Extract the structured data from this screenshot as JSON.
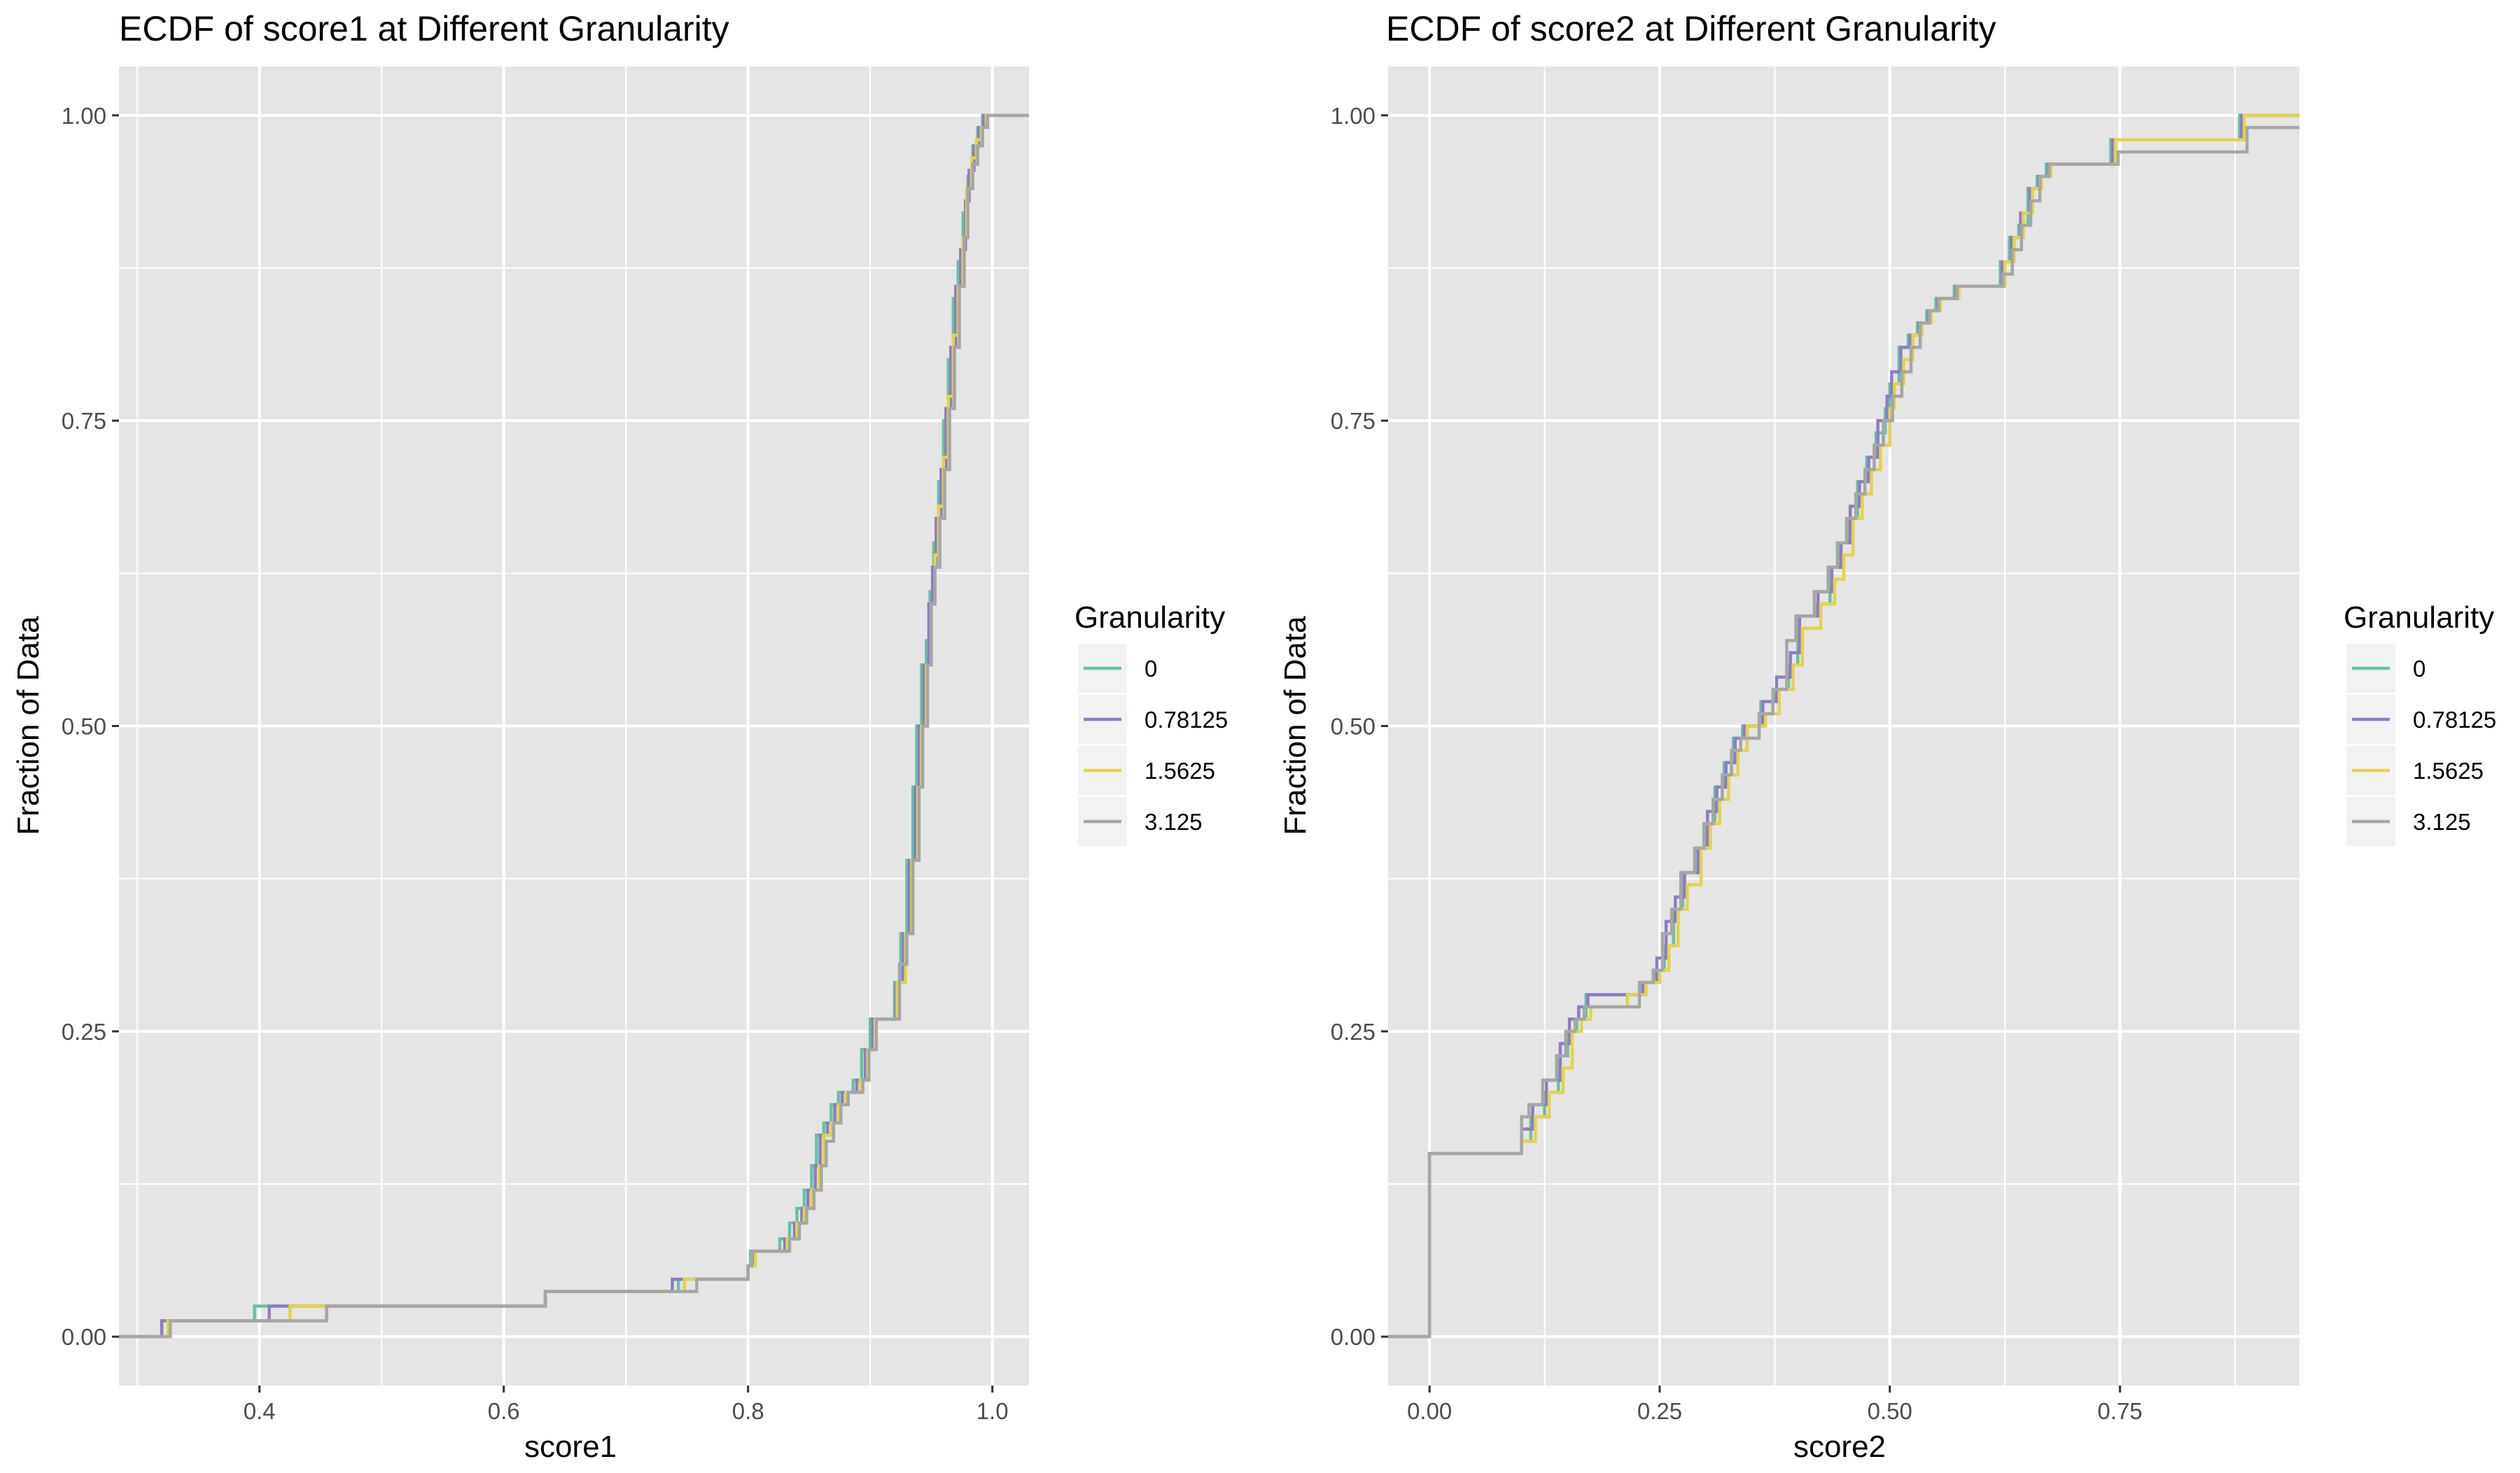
{
  "panels": [
    {
      "title": "ECDF of score1  at Different Granularity",
      "xlabel": "score1",
      "ylabel": "Fraction of Data",
      "legend_title": "Granularity"
    },
    {
      "title": "ECDF of score2  at Different Granularity",
      "xlabel": "score2",
      "ylabel": "Fraction of Data",
      "legend_title": "Granularity"
    }
  ],
  "colors": {
    "panel_bg": "#e5e5e5",
    "grid": "#ffffff",
    "legend_key_bg": "#f2f2f2",
    "text": "#000000",
    "tick_text": "#4d4d4d"
  },
  "chart_data": [
    {
      "type": "line",
      "step": true,
      "title": "ECDF of score1  at Different Granularity",
      "xlabel": "score1",
      "ylabel": "Fraction of Data",
      "xlim": [
        0.285,
        1.03
      ],
      "ylim": [
        -0.04,
        1.04
      ],
      "xticks": [
        0.4,
        0.6,
        0.8,
        1.0
      ],
      "xtick_labels": [
        "0.4",
        "0.6",
        "0.8",
        "1.0"
      ],
      "yticks": [
        0,
        0.25,
        0.5,
        0.75,
        1.0
      ],
      "ytick_labels": [
        "0.00",
        "0.25",
        "0.50",
        "0.75",
        "1.00"
      ],
      "grid": true,
      "legend": {
        "title": "Granularity",
        "placement": "right"
      },
      "series": [
        {
          "name": "0",
          "color": "#66c2a5",
          "x": [
            0.31,
            0.32,
            0.396,
            0.634,
            0.743,
            0.758,
            0.8,
            0.802,
            0.807,
            0.826,
            0.834,
            0.84,
            0.846,
            0.852,
            0.856,
            0.862,
            0.868,
            0.874,
            0.88,
            0.886,
            0.893,
            0.9,
            0.904,
            0.92,
            0.925,
            0.93,
            0.935,
            0.938,
            0.942,
            0.946,
            0.949,
            0.952,
            0.956,
            0.96,
            0.964,
            0.968,
            0.972,
            0.976,
            0.98,
            0.984,
            0.988,
            0.992,
            0.996
          ],
          "y": [
            0,
            0.013,
            0.025,
            0.037,
            0.047,
            0.047,
            0.058,
            0.07,
            0.07,
            0.08,
            0.093,
            0.105,
            0.12,
            0.14,
            0.165,
            0.175,
            0.19,
            0.2,
            0.2,
            0.21,
            0.235,
            0.26,
            0.26,
            0.29,
            0.33,
            0.39,
            0.45,
            0.5,
            0.55,
            0.57,
            0.61,
            0.65,
            0.7,
            0.75,
            0.8,
            0.85,
            0.88,
            0.92,
            0.95,
            0.975,
            0.99,
            1.0,
            1.0
          ]
        },
        {
          "name": "0.78125",
          "color": "#8e7cc3",
          "x": [
            0.31,
            0.32,
            0.408,
            0.634,
            0.738,
            0.752,
            0.8,
            0.804,
            0.808,
            0.83,
            0.838,
            0.844,
            0.849,
            0.855,
            0.859,
            0.865,
            0.871,
            0.877,
            0.883,
            0.889,
            0.896,
            0.902,
            0.906,
            0.921,
            0.927,
            0.932,
            0.937,
            0.94,
            0.944,
            0.948,
            0.951,
            0.954,
            0.958,
            0.962,
            0.966,
            0.97,
            0.974,
            0.978,
            0.981,
            0.985,
            0.989,
            0.993,
            0.997
          ],
          "y": [
            0,
            0.013,
            0.025,
            0.037,
            0.047,
            0.047,
            0.058,
            0.07,
            0.07,
            0.08,
            0.093,
            0.105,
            0.12,
            0.14,
            0.165,
            0.175,
            0.19,
            0.2,
            0.2,
            0.21,
            0.235,
            0.26,
            0.26,
            0.29,
            0.33,
            0.39,
            0.45,
            0.5,
            0.55,
            0.6,
            0.63,
            0.67,
            0.71,
            0.76,
            0.81,
            0.86,
            0.89,
            0.93,
            0.955,
            0.975,
            0.99,
            1.0,
            1.0
          ]
        },
        {
          "name": "1.5625",
          "color": "#e3d34b",
          "x": [
            0.31,
            0.325,
            0.425,
            0.634,
            0.748,
            0.76,
            0.8,
            0.806,
            0.812,
            0.832,
            0.84,
            0.846,
            0.852,
            0.858,
            0.862,
            0.868,
            0.874,
            0.88,
            0.886,
            0.892,
            0.898,
            0.904,
            0.908,
            0.922,
            0.929,
            0.934,
            0.939,
            0.942,
            0.946,
            0.95,
            0.953,
            0.956,
            0.96,
            0.964,
            0.968,
            0.972,
            0.976,
            0.979,
            0.983,
            0.987,
            0.991,
            0.995,
            0.998
          ],
          "y": [
            0,
            0.013,
            0.025,
            0.037,
            0.047,
            0.047,
            0.058,
            0.07,
            0.07,
            0.08,
            0.093,
            0.105,
            0.12,
            0.14,
            0.165,
            0.175,
            0.19,
            0.2,
            0.2,
            0.21,
            0.235,
            0.26,
            0.26,
            0.29,
            0.33,
            0.39,
            0.45,
            0.5,
            0.55,
            0.6,
            0.64,
            0.68,
            0.72,
            0.77,
            0.82,
            0.86,
            0.9,
            0.94,
            0.965,
            0.98,
            0.99,
            1.0,
            1.0
          ]
        },
        {
          "name": "3.125",
          "color": "#a6a6a6",
          "x": [
            0.31,
            0.327,
            0.455,
            0.634,
            0.758,
            0.762,
            0.8,
            0.803,
            0.813,
            0.834,
            0.842,
            0.848,
            0.854,
            0.86,
            0.864,
            0.87,
            0.876,
            0.882,
            0.888,
            0.894,
            0.899,
            0.905,
            0.91,
            0.924,
            0.93,
            0.935,
            0.94,
            0.943,
            0.947,
            0.95,
            0.953,
            0.957,
            0.961,
            0.965,
            0.969,
            0.973,
            0.977,
            0.98,
            0.984,
            0.988,
            0.992,
            0.996,
            0.999
          ],
          "y": [
            0,
            0.013,
            0.025,
            0.037,
            0.047,
            0.047,
            0.058,
            0.07,
            0.07,
            0.08,
            0.093,
            0.105,
            0.12,
            0.14,
            0.16,
            0.175,
            0.19,
            0.2,
            0.2,
            0.21,
            0.235,
            0.26,
            0.26,
            0.305,
            0.33,
            0.39,
            0.45,
            0.5,
            0.55,
            0.6,
            0.63,
            0.67,
            0.71,
            0.76,
            0.81,
            0.86,
            0.9,
            0.94,
            0.96,
            0.975,
            0.99,
            1.0,
            1.0
          ]
        }
      ]
    },
    {
      "type": "line",
      "step": true,
      "title": "ECDF of score2  at Different Granularity",
      "xlabel": "score2",
      "ylabel": "Fraction of Data",
      "xlim": [
        -0.045,
        0.945
      ],
      "ylim": [
        -0.04,
        1.04
      ],
      "xticks": [
        0,
        0.25,
        0.5,
        0.75
      ],
      "xtick_labels": [
        "0.00",
        "0.25",
        "0.50",
        "0.75"
      ],
      "yticks": [
        0,
        0.25,
        0.5,
        0.75,
        1.0
      ],
      "ytick_labels": [
        "0.00",
        "0.25",
        "0.50",
        "0.75",
        "1.00"
      ],
      "grid": true,
      "legend": {
        "title": "Granularity",
        "placement": "right"
      },
      "series": [
        {
          "name": "0",
          "color": "#66c2a5",
          "x": [
            0.0,
            0.1,
            0.11,
            0.125,
            0.14,
            0.15,
            0.16,
            0.17,
            0.21,
            0.23,
            0.245,
            0.255,
            0.265,
            0.275,
            0.29,
            0.3,
            0.31,
            0.32,
            0.33,
            0.34,
            0.36,
            0.375,
            0.39,
            0.4,
            0.42,
            0.435,
            0.445,
            0.455,
            0.465,
            0.475,
            0.485,
            0.495,
            0.5,
            0.51,
            0.52,
            0.53,
            0.54,
            0.55,
            0.57,
            0.62,
            0.63,
            0.64,
            0.65,
            0.66,
            0.67,
            0.74,
            0.88
          ],
          "y": [
            0.15,
            0.16,
            0.18,
            0.2,
            0.23,
            0.25,
            0.26,
            0.28,
            0.28,
            0.29,
            0.3,
            0.32,
            0.35,
            0.38,
            0.4,
            0.42,
            0.45,
            0.47,
            0.49,
            0.5,
            0.52,
            0.53,
            0.55,
            0.59,
            0.6,
            0.63,
            0.65,
            0.67,
            0.7,
            0.72,
            0.74,
            0.76,
            0.78,
            0.81,
            0.82,
            0.83,
            0.84,
            0.85,
            0.86,
            0.88,
            0.9,
            0.91,
            0.94,
            0.95,
            0.96,
            0.98,
            1.0
          ]
        },
        {
          "name": "0.78125",
          "color": "#8e7cc3",
          "x": [
            0.0,
            0.1,
            0.112,
            0.127,
            0.142,
            0.152,
            0.162,
            0.172,
            0.212,
            0.232,
            0.247,
            0.257,
            0.267,
            0.277,
            0.292,
            0.302,
            0.312,
            0.322,
            0.332,
            0.342,
            0.362,
            0.377,
            0.392,
            0.402,
            0.422,
            0.437,
            0.447,
            0.457,
            0.467,
            0.477,
            0.487,
            0.497,
            0.502,
            0.512,
            0.522,
            0.532,
            0.542,
            0.552,
            0.572,
            0.622,
            0.632,
            0.642,
            0.652,
            0.662,
            0.672,
            0.742,
            0.882
          ],
          "y": [
            0.15,
            0.17,
            0.19,
            0.21,
            0.24,
            0.26,
            0.27,
            0.28,
            0.28,
            0.29,
            0.31,
            0.34,
            0.36,
            0.38,
            0.4,
            0.43,
            0.45,
            0.47,
            0.49,
            0.5,
            0.52,
            0.54,
            0.56,
            0.59,
            0.61,
            0.63,
            0.65,
            0.68,
            0.7,
            0.72,
            0.75,
            0.77,
            0.79,
            0.81,
            0.82,
            0.83,
            0.84,
            0.85,
            0.86,
            0.88,
            0.9,
            0.92,
            0.94,
            0.95,
            0.96,
            0.98,
            1.0
          ]
        },
        {
          "name": "1.5625",
          "color": "#e3d34b",
          "x": [
            0.0,
            0.1,
            0.115,
            0.13,
            0.145,
            0.155,
            0.165,
            0.175,
            0.215,
            0.235,
            0.25,
            0.26,
            0.27,
            0.28,
            0.295,
            0.305,
            0.315,
            0.325,
            0.335,
            0.345,
            0.365,
            0.38,
            0.395,
            0.405,
            0.425,
            0.44,
            0.45,
            0.46,
            0.47,
            0.48,
            0.49,
            0.5,
            0.505,
            0.515,
            0.525,
            0.535,
            0.545,
            0.555,
            0.575,
            0.625,
            0.635,
            0.645,
            0.655,
            0.665,
            0.675,
            0.745,
            0.885
          ],
          "y": [
            0.15,
            0.16,
            0.18,
            0.2,
            0.22,
            0.25,
            0.26,
            0.27,
            0.28,
            0.29,
            0.3,
            0.32,
            0.35,
            0.37,
            0.4,
            0.42,
            0.44,
            0.46,
            0.48,
            0.5,
            0.51,
            0.53,
            0.55,
            0.58,
            0.6,
            0.62,
            0.64,
            0.67,
            0.69,
            0.71,
            0.73,
            0.76,
            0.78,
            0.8,
            0.82,
            0.83,
            0.84,
            0.85,
            0.86,
            0.88,
            0.9,
            0.92,
            0.94,
            0.95,
            0.96,
            0.98,
            1.0
          ]
        },
        {
          "name": "3.125",
          "color": "#a6a6a6",
          "x": [
            0.0,
            0.1,
            0.108,
            0.123,
            0.138,
            0.148,
            0.158,
            0.168,
            0.21,
            0.228,
            0.243,
            0.253,
            0.263,
            0.273,
            0.288,
            0.298,
            0.308,
            0.318,
            0.328,
            0.338,
            0.358,
            0.373,
            0.388,
            0.398,
            0.418,
            0.433,
            0.443,
            0.453,
            0.463,
            0.473,
            0.483,
            0.493,
            0.503,
            0.513,
            0.523,
            0.533,
            0.543,
            0.553,
            0.573,
            0.623,
            0.633,
            0.643,
            0.653,
            0.663,
            0.673,
            0.748,
            0.888
          ],
          "y": [
            0.15,
            0.18,
            0.19,
            0.21,
            0.23,
            0.25,
            0.26,
            0.27,
            0.27,
            0.29,
            0.3,
            0.33,
            0.35,
            0.38,
            0.4,
            0.42,
            0.44,
            0.46,
            0.48,
            0.49,
            0.51,
            0.53,
            0.57,
            0.59,
            0.61,
            0.63,
            0.65,
            0.67,
            0.69,
            0.71,
            0.73,
            0.75,
            0.77,
            0.79,
            0.81,
            0.83,
            0.84,
            0.85,
            0.86,
            0.87,
            0.89,
            0.91,
            0.93,
            0.95,
            0.96,
            0.97,
            0.99
          ]
        }
      ]
    }
  ]
}
